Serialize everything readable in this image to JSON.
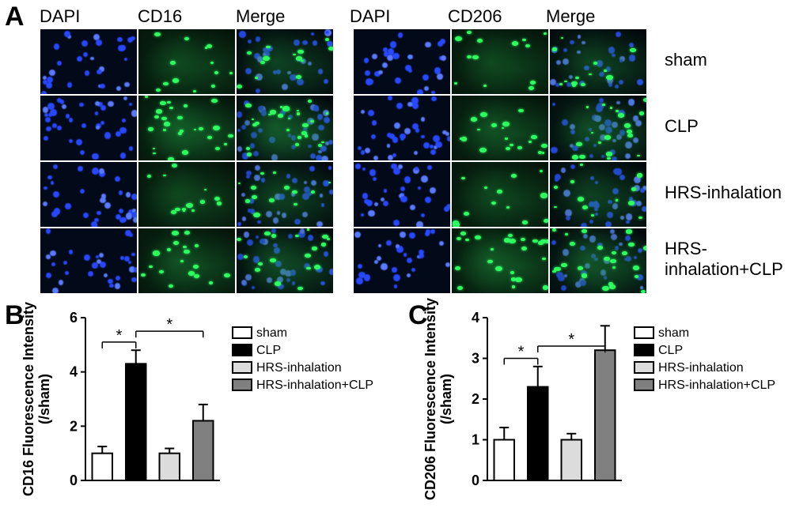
{
  "panelA": {
    "label": "A",
    "col_headers_left": [
      "DAPI",
      "CD16",
      "Merge"
    ],
    "col_headers_right": [
      "DAPI",
      "CD206",
      "Merge"
    ],
    "row_labels": [
      "sham",
      "CLP",
      "HRS-inhalation",
      "HRS-inhalation+CLP"
    ],
    "colors": {
      "dapi_bg": "#020a1a",
      "dapi_nucleus": "#2848ff",
      "dapi_nucleus_bright": "#5a7aff",
      "green_bg": "#05140a",
      "green_signal": "#2dff60",
      "green_signal_dim": "#1a8a3a",
      "merge_bg": "#03080d"
    },
    "header_fontsize": 22,
    "rowlabel_fontsize": 22
  },
  "panelB": {
    "label": "B",
    "type": "bar",
    "ylabel_line1": "CD16 Fluorescence Intensity",
    "ylabel_line2": "(/sham)",
    "ylim": [
      0,
      6
    ],
    "ytick_step": 2,
    "categories": [
      "sham",
      "CLP",
      "HRS-inhalation",
      "HRS-inhalation+CLP"
    ],
    "values": [
      1.0,
      4.3,
      1.0,
      2.2
    ],
    "errors": [
      0.25,
      0.5,
      0.18,
      0.6
    ],
    "bar_colors": [
      "#ffffff",
      "#000000",
      "#dcdcdc",
      "#808080"
    ],
    "bar_width": 0.6,
    "sig_brackets": [
      {
        "from": 0,
        "to": 1,
        "y": 5.1,
        "label": "*"
      },
      {
        "from": 1,
        "to": 3,
        "y": 5.5,
        "label": "*"
      }
    ],
    "legend": [
      {
        "label": "sham",
        "fill": "#ffffff"
      },
      {
        "label": "CLP",
        "fill": "#000000"
      },
      {
        "label": "HRS-inhalation",
        "fill": "#dcdcdc"
      },
      {
        "label": "HRS-inhalation+CLP",
        "fill": "#808080"
      }
    ],
    "axis_color": "#000000",
    "tick_fontsize": 18,
    "label_fontsize": 18
  },
  "panelC": {
    "label": "C",
    "type": "bar",
    "ylabel_line1": "CD206 Fluorescence Intensity",
    "ylabel_line2": "(/sham)",
    "ylim": [
      0,
      4
    ],
    "ytick_step": 1,
    "categories": [
      "sham",
      "CLP",
      "HRS-inhalation",
      "HRS-inhalation+CLP"
    ],
    "values": [
      1.0,
      2.3,
      1.0,
      3.2
    ],
    "errors": [
      0.3,
      0.5,
      0.15,
      0.6
    ],
    "bar_colors": [
      "#ffffff",
      "#000000",
      "#dcdcdc",
      "#808080"
    ],
    "bar_width": 0.6,
    "sig_brackets": [
      {
        "from": 0,
        "to": 1,
        "y": 3.0,
        "label": "*"
      },
      {
        "from": 1,
        "to": 3,
        "y": 3.3,
        "label": "*"
      }
    ],
    "legend": [
      {
        "label": "sham",
        "fill": "#ffffff"
      },
      {
        "label": "CLP",
        "fill": "#000000"
      },
      {
        "label": "HRS-inhalation",
        "fill": "#dcdcdc"
      },
      {
        "label": "HRS-inhalation+CLP",
        "fill": "#808080"
      }
    ],
    "axis_color": "#000000",
    "tick_fontsize": 18,
    "label_fontsize": 18
  }
}
